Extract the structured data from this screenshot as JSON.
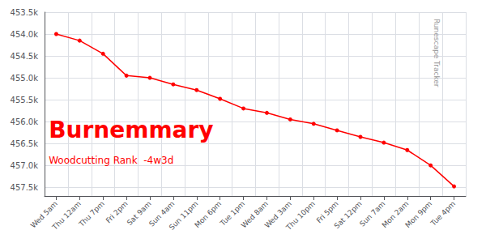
{
  "chart_data": {
    "type": "line",
    "title": "Burnemmary",
    "subtitle": "Woodcutting Rank  -4w3d",
    "annotations": [
      "Runescape Tracker"
    ],
    "categories": [
      "Wed 5am",
      "Thu 12am",
      "Thu 7pm",
      "Fri 2pm",
      "Sat 9am",
      "Sun 4am",
      "Sun 11pm",
      "Mon 6pm",
      "Tue 1pm",
      "Wed 8am",
      "Wed 3am",
      "Thu 10pm",
      "Fri 5pm",
      "Sat 12pm",
      "Sun 7am",
      "Mon 2am",
      "Mon 9pm",
      "Tue 4pm"
    ],
    "values": [
      454000,
      454150,
      454450,
      454950,
      455000,
      455150,
      455280,
      455480,
      455700,
      455800,
      455950,
      456050,
      456200,
      456350,
      456480,
      456650,
      457000,
      457480
    ],
    "color": "#ff0000",
    "marker": "circle",
    "ylim": [
      453500,
      457700
    ],
    "yticks": [
      {
        "value": 453500,
        "label": "453.5k"
      },
      {
        "value": 454000,
        "label": "454.0k"
      },
      {
        "value": 454500,
        "label": "454.5k"
      },
      {
        "value": 455000,
        "label": "455.0k"
      },
      {
        "value": 455500,
        "label": "455.5k"
      },
      {
        "value": 456000,
        "label": "456.0k"
      },
      {
        "value": 456500,
        "label": "456.5k"
      },
      {
        "value": 457000,
        "label": "457.0k"
      },
      {
        "value": 457500,
        "label": "457.5k"
      }
    ],
    "grid": true
  }
}
